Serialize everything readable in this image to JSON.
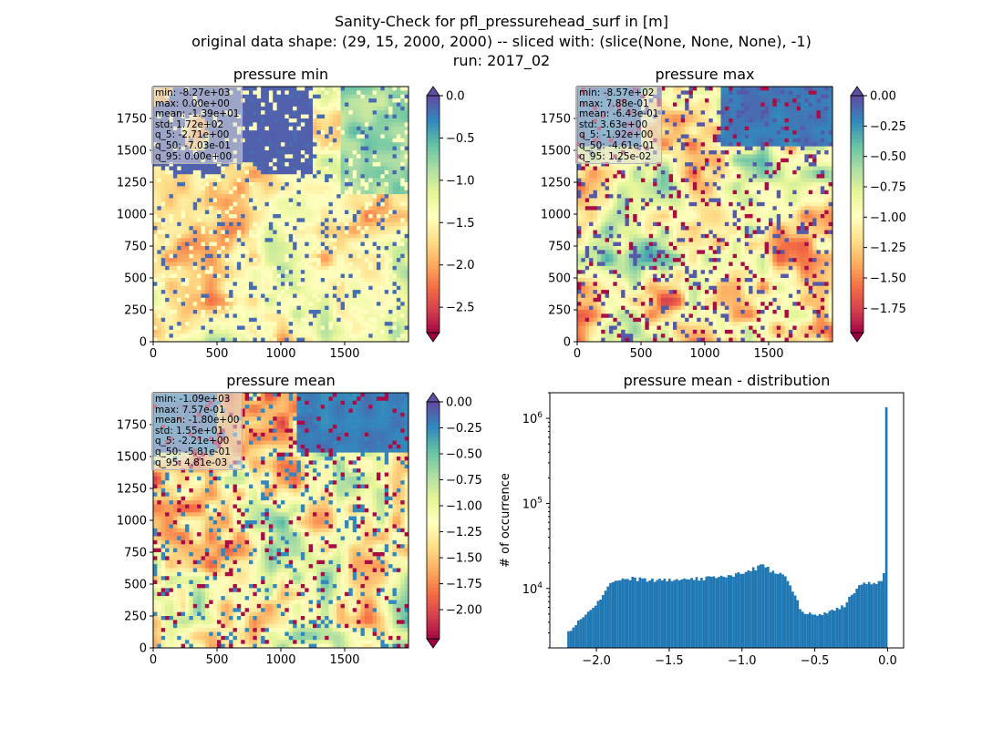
{
  "figure": {
    "suptitle_lines": [
      "Sanity-Check for pfl_pressurehead_surf in [m]",
      "original data shape: (29, 15, 2000, 2000) -- sliced with: (slice(None, None, None), -1)",
      "run: 2017_02"
    ]
  },
  "chart_data": [
    {
      "type": "heatmap",
      "title": "pressure min",
      "x_ticks": [
        "0",
        "500",
        "1000",
        "1500"
      ],
      "y_ticks": [
        "0",
        "250",
        "500",
        "750",
        "1000",
        "1250",
        "1500",
        "1750"
      ],
      "xlim": [
        0,
        2000
      ],
      "ylim": [
        0,
        2000
      ],
      "colormap": "Spectral",
      "colorbar": {
        "vmin": -2.8,
        "vmax": 0.0,
        "ticks": [
          "0.0",
          "−0.5",
          "−1.0",
          "−1.5",
          "−2.0",
          "−2.5"
        ],
        "extend": "both"
      },
      "stats": [
        "min: -8.27e+03",
        "max: 0.00e+00",
        "mean: -1.39e+01",
        "std: 1.72e+02",
        "q_5: -2.71e+00",
        "q_50: -7.03e-01",
        "q_95: 0.00e+00"
      ]
    },
    {
      "type": "heatmap",
      "title": "pressure max",
      "x_ticks": [
        "0",
        "500",
        "1000",
        "1500"
      ],
      "y_ticks": [
        "0",
        "250",
        "500",
        "750",
        "1000",
        "1250",
        "1500",
        "1750"
      ],
      "xlim": [
        0,
        2000
      ],
      "ylim": [
        0,
        2000
      ],
      "colormap": "Spectral",
      "colorbar": {
        "vmin": -1.95,
        "vmax": 0.0,
        "ticks": [
          "0.00",
          "−0.25",
          "−0.50",
          "−0.75",
          "−1.00",
          "−1.25",
          "−1.50",
          "−1.75"
        ],
        "extend": "both"
      },
      "stats": [
        "min: -8.57e+02",
        "max: 7.88e-01",
        "mean: -6.43e-01",
        "std: 3.63e+00",
        "q_5: -1.92e+00",
        "q_50: -4.61e-01",
        "q_95: 1.25e-02"
      ]
    },
    {
      "type": "heatmap",
      "title": "pressure mean",
      "x_ticks": [
        "0",
        "500",
        "1000",
        "1500"
      ],
      "y_ticks": [
        "0",
        "250",
        "500",
        "750",
        "1000",
        "1250",
        "1500",
        "1750"
      ],
      "xlim": [
        0,
        2000
      ],
      "ylim": [
        0,
        2000
      ],
      "colormap": "Spectral",
      "colorbar": {
        "vmin": -2.28,
        "vmax": 0.0,
        "ticks": [
          "0.00",
          "−0.25",
          "−0.50",
          "−0.75",
          "−1.00",
          "−1.25",
          "−1.50",
          "−1.75",
          "−2.00"
        ],
        "extend": "both"
      },
      "stats": [
        "min: -1.09e+03",
        "max: 7.57e-01",
        "mean: -1.80e+00",
        "std: 1.55e+01",
        "q_5: -2.21e+00",
        "q_50: -5.81e-01",
        "q_95: 4.81e-03"
      ]
    },
    {
      "type": "bar",
      "title": "pressure mean - distribution",
      "ylabel": "# of occurrence",
      "yscale": "log",
      "xlim": [
        -2.32,
        0.11
      ],
      "ylim": [
        2000,
        2000000
      ],
      "x_ticks": [
        "−2.0",
        "−1.5",
        "−1.0",
        "−0.5",
        "0.0"
      ],
      "bar_color": "#1f77b4",
      "bins": [
        [
          -2.2,
          3000
        ],
        [
          -2.0,
          6500
        ],
        [
          -1.9,
          12000
        ],
        [
          -1.8,
          13200
        ],
        [
          -1.6,
          12600
        ],
        [
          -1.4,
          12800
        ],
        [
          -1.2,
          13300
        ],
        [
          -1.0,
          15000
        ],
        [
          -0.9,
          17500
        ],
        [
          -0.85,
          19500
        ],
        [
          -0.8,
          16000
        ],
        [
          -0.7,
          14000
        ],
        [
          -0.65,
          9000
        ],
        [
          -0.6,
          6000
        ],
        [
          -0.55,
          5000
        ],
        [
          -0.5,
          4800
        ],
        [
          -0.4,
          5200
        ],
        [
          -0.3,
          6200
        ],
        [
          -0.2,
          11000
        ],
        [
          -0.1,
          11500
        ],
        [
          -0.03,
          12500
        ],
        [
          -0.01,
          27000
        ],
        [
          0.0,
          1350000
        ]
      ]
    }
  ]
}
